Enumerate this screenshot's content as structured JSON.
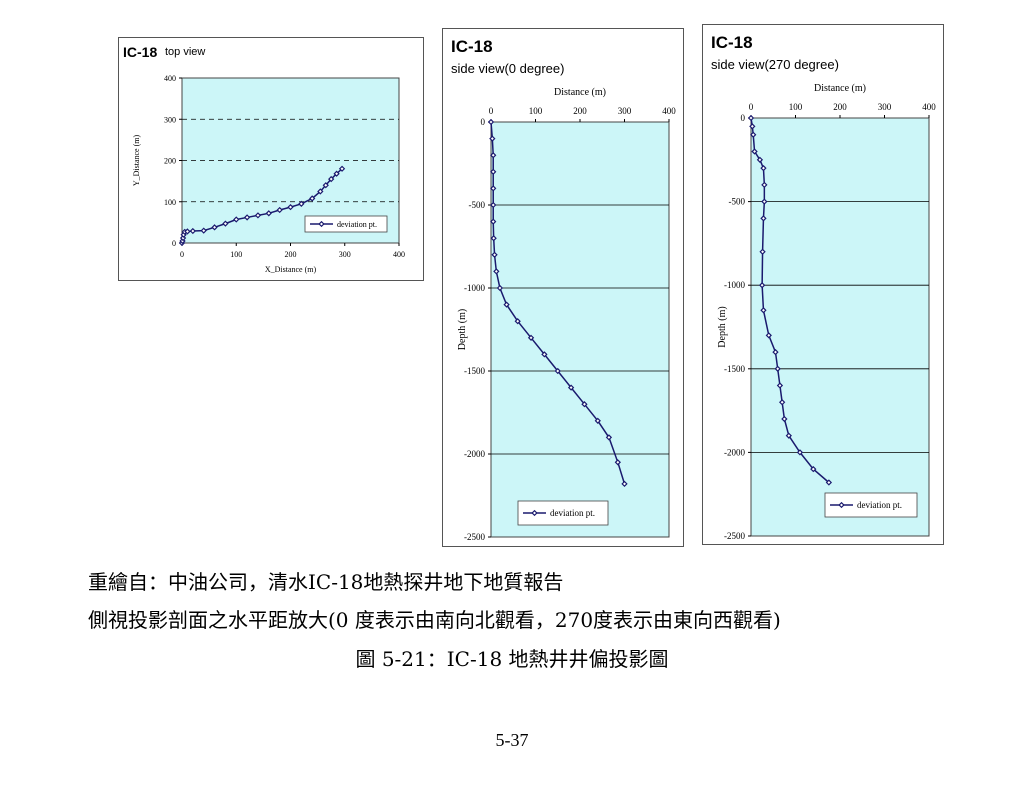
{
  "charts": [
    {
      "title": "IC-18",
      "subtitle": "top view",
      "xlabel": "X_Distance (m)",
      "ylabel": "Y_Distance (m)",
      "xlim": [
        0,
        400
      ],
      "ylim": [
        0,
        400
      ],
      "xticks": [
        "0",
        "100",
        "200",
        "300",
        "400"
      ],
      "yticks": [
        "0",
        "100",
        "200",
        "300",
        "400"
      ],
      "legend": "deviation pt."
    },
    {
      "title": "IC-18",
      "subtitle": "side view(0 degree)",
      "xlabel": "Distance (m)",
      "ylabel": "Depth (m)",
      "xlim": [
        0,
        400
      ],
      "ylim": [
        -2500,
        0
      ],
      "xticks": [
        "0",
        "100",
        "200",
        "300",
        "400"
      ],
      "yticks": [
        "0",
        "-500",
        "-1000",
        "-1500",
        "-2000",
        "-2500"
      ],
      "legend": "deviation pt."
    },
    {
      "title": "IC-18",
      "subtitle": "side view(270 degree)",
      "xlabel": "Distance (m)",
      "ylabel": "Depth (m)",
      "xlim": [
        0,
        400
      ],
      "ylim": [
        -2500,
        0
      ],
      "xticks": [
        "0",
        "100",
        "200",
        "300",
        "400"
      ],
      "yticks": [
        "0",
        "-500",
        "-1000",
        "-1500",
        "-2000",
        "-2500"
      ],
      "legend": "deviation pt."
    }
  ],
  "chart_data": [
    {
      "type": "scatter",
      "title": "IC-18",
      "subtitle": "top view",
      "xlabel": "X_Distance (m)",
      "ylabel": "Y_Distance (m)",
      "xlim": [
        0,
        400
      ],
      "ylim": [
        0,
        400
      ],
      "grid": "horizontal dashed",
      "legend_position": "lower-right",
      "series": [
        {
          "name": "deviation pt.",
          "x": [
            0,
            1,
            2,
            3,
            5,
            10,
            20,
            40,
            60,
            80,
            100,
            120,
            140,
            160,
            180,
            200,
            220,
            240,
            255,
            265,
            275,
            285,
            295
          ],
          "y": [
            0,
            5,
            12,
            20,
            27,
            28,
            29,
            30,
            38,
            47,
            57,
            62,
            67,
            72,
            80,
            87,
            95,
            108,
            125,
            140,
            155,
            168,
            180
          ]
        }
      ]
    },
    {
      "type": "scatter",
      "title": "IC-18",
      "subtitle": "side view(0 degree)",
      "xlabel": "Distance (m)",
      "ylabel": "Depth (m)",
      "xlim": [
        0,
        400
      ],
      "ylim": [
        -2500,
        0
      ],
      "grid": "horizontal",
      "legend_position": "bottom-center",
      "series": [
        {
          "name": "deviation pt.",
          "x": [
            0,
            3,
            5,
            5,
            5,
            5,
            5,
            6,
            8,
            12,
            20,
            35,
            60,
            90,
            120,
            150,
            180,
            210,
            240,
            265,
            285,
            300
          ],
          "y": [
            0,
            -100,
            -200,
            -300,
            -400,
            -500,
            -600,
            -700,
            -800,
            -900,
            -1000,
            -1100,
            -1200,
            -1300,
            -1400,
            -1500,
            -1600,
            -1700,
            -1800,
            -1900,
            -2050,
            -2180
          ]
        }
      ]
    },
    {
      "type": "scatter",
      "title": "IC-18",
      "subtitle": "side view(270 degree)",
      "xlabel": "Distance (m)",
      "ylabel": "Depth (m)",
      "xlim": [
        0,
        400
      ],
      "ylim": [
        -2500,
        0
      ],
      "grid": "horizontal",
      "legend_position": "bottom-right",
      "series": [
        {
          "name": "deviation pt.",
          "x": [
            0,
            3,
            5,
            8,
            20,
            28,
            30,
            30,
            28,
            26,
            25,
            28,
            40,
            55,
            60,
            65,
            70,
            75,
            85,
            110,
            140,
            175
          ],
          "y": [
            0,
            -50,
            -100,
            -200,
            -250,
            -300,
            -400,
            -500,
            -600,
            -800,
            -1000,
            -1150,
            -1300,
            -1400,
            -1500,
            -1600,
            -1700,
            -1800,
            -1900,
            -2000,
            -2100,
            -2180
          ]
        }
      ]
    }
  ],
  "captions": {
    "line1": "重繪自：中油公司，清水IC-18地熱探井地下地質報告",
    "line2": "側視投影剖面之水平距放大(0  度表示由南向北觀看，270度表示由東向西觀看)",
    "line3": "圖  5-21：IC-18  地熱井井偏投影圖"
  },
  "page_number": "5-37",
  "colors": {
    "plot_bg": "#ccf6f8",
    "series": "#1a1a6e",
    "grid": "#000000"
  }
}
